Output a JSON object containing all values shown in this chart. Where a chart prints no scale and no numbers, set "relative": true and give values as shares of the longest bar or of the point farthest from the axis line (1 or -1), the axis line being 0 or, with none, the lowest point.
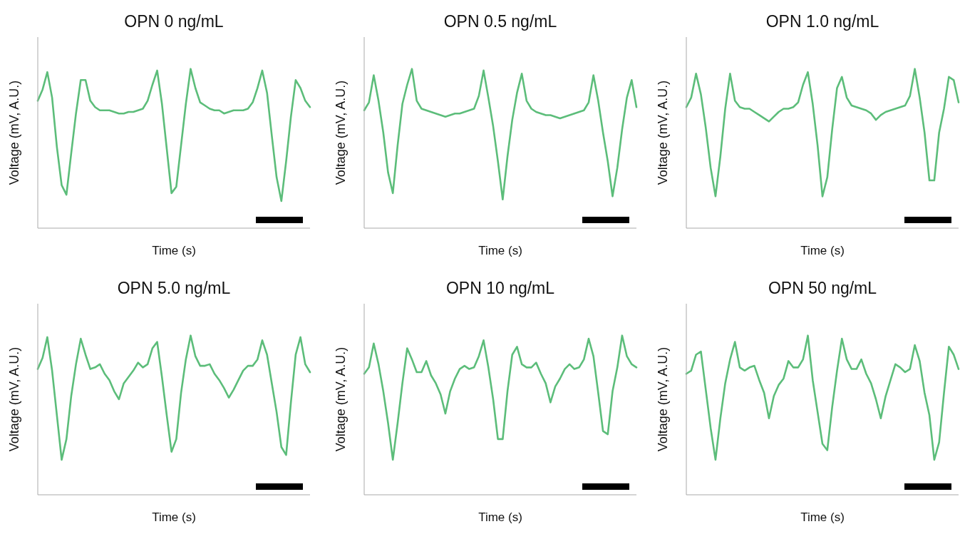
{
  "chart_data": [
    {
      "type": "line",
      "title": "OPN 0 ng/mL",
      "xlabel": "Time (s)",
      "ylabel": "Voltage (mV, A.U.)",
      "relative": true,
      "categories": [
        null,
        null,
        null,
        null,
        null,
        null,
        null,
        null,
        null,
        null,
        null,
        null,
        null,
        null,
        null,
        null,
        null,
        null,
        null,
        null,
        null,
        null,
        null,
        null,
        null,
        null,
        null,
        null,
        null,
        null,
        null,
        null,
        null,
        null,
        null,
        null,
        null,
        null,
        null,
        null,
        null,
        null,
        null,
        null,
        null,
        null,
        null,
        null,
        null,
        null,
        null,
        null,
        null,
        null,
        null,
        null,
        null,
        null
      ],
      "series": [
        {
          "color": "#5cbd7a",
          "values": [
            0.8,
            0.87,
            0.98,
            0.82,
            0.51,
            0.27,
            0.21,
            0.47,
            0.72,
            0.93,
            0.93,
            0.8,
            0.76,
            0.74,
            0.74,
            0.74,
            0.73,
            0.72,
            0.72,
            0.73,
            0.73,
            0.74,
            0.75,
            0.8,
            0.9,
            0.99,
            0.78,
            0.5,
            0.22,
            0.26,
            0.52,
            0.78,
            1.0,
            0.88,
            0.79,
            0.77,
            0.75,
            0.74,
            0.74,
            0.72,
            0.73,
            0.74,
            0.74,
            0.74,
            0.75,
            0.79,
            0.88,
            0.99,
            0.85,
            0.58,
            0.32,
            0.17,
            0.42,
            0.7,
            0.93,
            0.88,
            0.8,
            0.76
          ]
        }
      ]
    },
    {
      "type": "line",
      "title": "OPN 0.5 ng/mL",
      "xlabel": "Time (s)",
      "ylabel": "Voltage (mV, A.U.)",
      "relative": true,
      "categories": [
        null,
        null,
        null,
        null,
        null,
        null,
        null,
        null,
        null,
        null,
        null,
        null,
        null,
        null,
        null,
        null,
        null,
        null,
        null,
        null,
        null,
        null,
        null,
        null,
        null,
        null,
        null,
        null,
        null,
        null,
        null,
        null,
        null,
        null,
        null,
        null,
        null,
        null,
        null,
        null,
        null,
        null,
        null,
        null,
        null,
        null,
        null,
        null,
        null,
        null,
        null,
        null,
        null,
        null,
        null,
        null,
        null,
        null
      ],
      "series": [
        {
          "color": "#5cbd7a",
          "values": [
            0.74,
            0.79,
            0.96,
            0.8,
            0.6,
            0.35,
            0.22,
            0.52,
            0.78,
            0.9,
            1.0,
            0.8,
            0.75,
            0.74,
            0.73,
            0.72,
            0.71,
            0.7,
            0.71,
            0.72,
            0.72,
            0.73,
            0.74,
            0.75,
            0.83,
            0.99,
            0.82,
            0.64,
            0.42,
            0.18,
            0.45,
            0.68,
            0.85,
            0.97,
            0.8,
            0.75,
            0.73,
            0.72,
            0.71,
            0.71,
            0.7,
            0.69,
            0.7,
            0.71,
            0.72,
            0.73,
            0.74,
            0.79,
            0.96,
            0.8,
            0.6,
            0.42,
            0.2,
            0.38,
            0.62,
            0.82,
            0.93,
            0.76
          ]
        }
      ]
    },
    {
      "type": "line",
      "title": "OPN 1.0 ng/mL",
      "xlabel": "Time (s)",
      "ylabel": "Voltage (mV, A.U.)",
      "relative": true,
      "categories": [
        null,
        null,
        null,
        null,
        null,
        null,
        null,
        null,
        null,
        null,
        null,
        null,
        null,
        null,
        null,
        null,
        null,
        null,
        null,
        null,
        null,
        null,
        null,
        null,
        null,
        null,
        null,
        null,
        null,
        null,
        null,
        null,
        null,
        null,
        null,
        null,
        null,
        null,
        null,
        null,
        null,
        null,
        null,
        null,
        null,
        null,
        null,
        null,
        null,
        null,
        null,
        null,
        null,
        null,
        null,
        null,
        null
      ],
      "series": [
        {
          "color": "#5cbd7a",
          "values": [
            0.76,
            0.82,
            0.97,
            0.84,
            0.63,
            0.38,
            0.2,
            0.45,
            0.75,
            0.97,
            0.8,
            0.76,
            0.75,
            0.75,
            0.73,
            0.71,
            0.69,
            0.67,
            0.7,
            0.73,
            0.75,
            0.75,
            0.76,
            0.79,
            0.9,
            0.98,
            0.78,
            0.52,
            0.2,
            0.32,
            0.62,
            0.88,
            0.95,
            0.82,
            0.77,
            0.76,
            0.75,
            0.74,
            0.72,
            0.68,
            0.71,
            0.73,
            0.74,
            0.75,
            0.76,
            0.77,
            0.83,
            1.0,
            0.82,
            0.6,
            0.3,
            0.3,
            0.6,
            0.75,
            0.95,
            0.93,
            0.79
          ]
        }
      ]
    },
    {
      "type": "line",
      "title": "OPN 5.0 ng/mL",
      "xlabel": "Time (s)",
      "ylabel": "Voltage (mV, A.U.)",
      "relative": true,
      "categories": [
        null,
        null,
        null,
        null,
        null,
        null,
        null,
        null,
        null,
        null,
        null,
        null,
        null,
        null,
        null,
        null,
        null,
        null,
        null,
        null,
        null,
        null,
        null,
        null,
        null,
        null,
        null,
        null,
        null,
        null,
        null,
        null,
        null,
        null,
        null,
        null,
        null,
        null,
        null,
        null,
        null,
        null,
        null,
        null,
        null,
        null,
        null,
        null,
        null,
        null,
        null,
        null,
        null,
        null,
        null,
        null,
        null,
        null
      ],
      "series": [
        {
          "color": "#5cbd7a",
          "values": [
            0.79,
            0.86,
            0.99,
            0.78,
            0.5,
            0.22,
            0.35,
            0.62,
            0.82,
            0.98,
            0.88,
            0.79,
            0.8,
            0.82,
            0.76,
            0.72,
            0.65,
            0.6,
            0.7,
            0.74,
            0.78,
            0.83,
            0.8,
            0.82,
            0.92,
            0.96,
            0.74,
            0.5,
            0.27,
            0.35,
            0.64,
            0.85,
            1.0,
            0.87,
            0.81,
            0.81,
            0.82,
            0.76,
            0.72,
            0.67,
            0.61,
            0.66,
            0.72,
            0.78,
            0.81,
            0.81,
            0.85,
            0.97,
            0.88,
            0.7,
            0.52,
            0.3,
            0.25,
            0.58,
            0.88,
            0.99,
            0.82,
            0.77
          ]
        }
      ]
    },
    {
      "type": "line",
      "title": "OPN 10 ng/mL",
      "xlabel": "Time (s)",
      "ylabel": "Voltage (mV, A.U.)",
      "relative": true,
      "categories": [
        null,
        null,
        null,
        null,
        null,
        null,
        null,
        null,
        null,
        null,
        null,
        null,
        null,
        null,
        null,
        null,
        null,
        null,
        null,
        null,
        null,
        null,
        null,
        null,
        null,
        null,
        null,
        null,
        null,
        null,
        null,
        null,
        null,
        null,
        null,
        null,
        null,
        null,
        null,
        null,
        null,
        null,
        null,
        null,
        null,
        null,
        null,
        null,
        null,
        null,
        null,
        null,
        null,
        null,
        null,
        null,
        null,
        null
      ],
      "series": [
        {
          "color": "#5cbd7a",
          "values": [
            0.76,
            0.8,
            0.95,
            0.82,
            0.65,
            0.45,
            0.22,
            0.45,
            0.7,
            0.92,
            0.85,
            0.77,
            0.77,
            0.84,
            0.75,
            0.7,
            0.63,
            0.51,
            0.65,
            0.73,
            0.79,
            0.81,
            0.79,
            0.8,
            0.87,
            0.97,
            0.8,
            0.6,
            0.35,
            0.35,
            0.65,
            0.88,
            0.93,
            0.82,
            0.8,
            0.8,
            0.83,
            0.76,
            0.7,
            0.58,
            0.68,
            0.73,
            0.79,
            0.82,
            0.79,
            0.8,
            0.85,
            0.98,
            0.87,
            0.64,
            0.4,
            0.38,
            0.65,
            0.8,
            1.0,
            0.87,
            0.82,
            0.8
          ]
        }
      ]
    },
    {
      "type": "line",
      "title": "OPN 50 ng/mL",
      "xlabel": "Time (s)",
      "ylabel": "Voltage (mV, A.U.)",
      "relative": true,
      "categories": [
        null,
        null,
        null,
        null,
        null,
        null,
        null,
        null,
        null,
        null,
        null,
        null,
        null,
        null,
        null,
        null,
        null,
        null,
        null,
        null,
        null,
        null,
        null,
        null,
        null,
        null,
        null,
        null,
        null,
        null,
        null,
        null,
        null,
        null,
        null,
        null,
        null,
        null,
        null,
        null,
        null,
        null,
        null,
        null,
        null,
        null,
        null,
        null,
        null,
        null,
        null,
        null,
        null,
        null,
        null,
        null,
        null
      ],
      "series": [
        {
          "color": "#5cbd7a",
          "values": [
            0.76,
            0.78,
            0.88,
            0.9,
            0.66,
            0.42,
            0.22,
            0.48,
            0.7,
            0.85,
            0.96,
            0.8,
            0.78,
            0.8,
            0.81,
            0.72,
            0.64,
            0.48,
            0.62,
            0.69,
            0.73,
            0.84,
            0.8,
            0.8,
            0.85,
            1.0,
            0.72,
            0.52,
            0.32,
            0.28,
            0.55,
            0.78,
            0.98,
            0.85,
            0.79,
            0.79,
            0.85,
            0.76,
            0.7,
            0.6,
            0.48,
            0.62,
            0.72,
            0.82,
            0.8,
            0.77,
            0.79,
            0.94,
            0.84,
            0.64,
            0.5,
            0.22,
            0.33,
            0.64,
            0.93,
            0.88,
            0.79
          ]
        }
      ]
    }
  ]
}
